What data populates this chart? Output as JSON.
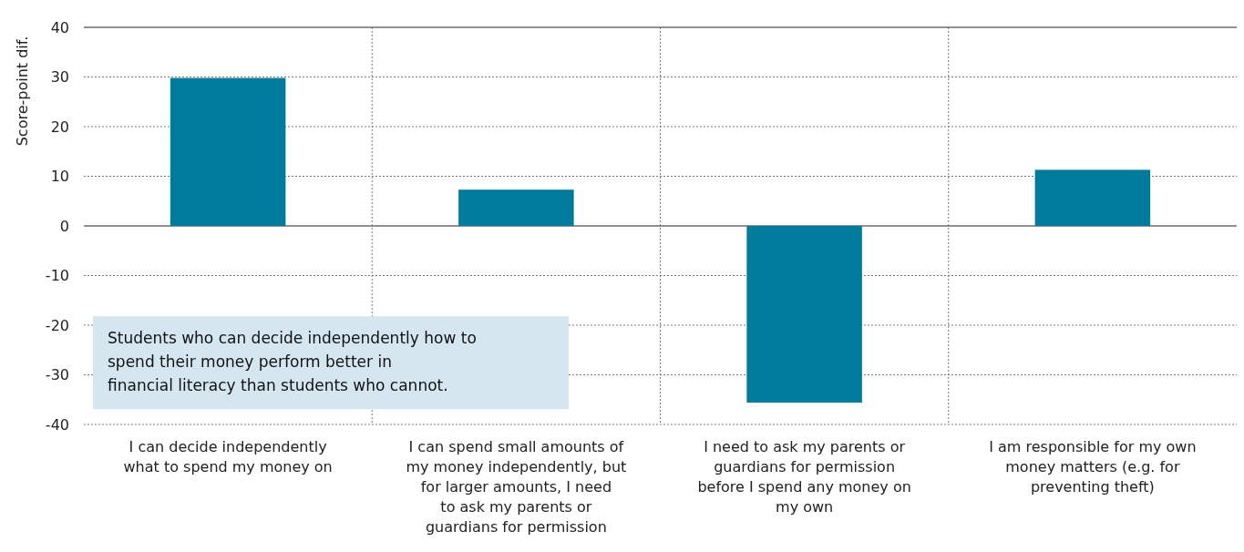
{
  "chart_data": {
    "type": "bar",
    "ylabel": "Score-point dif.",
    "categories": [
      "I can decide independently what to spend my money on",
      "I can spend small amounts of my money independently, but for larger amounts, I need to ask my parents or guardians for permission",
      "I need to ask my parents or guardians for permission before I spend any money on my own",
      "I am responsible for my own money matters (e.g. for preventing theft)"
    ],
    "values": [
      29.8,
      7.3,
      -35.6,
      11.3
    ],
    "color": "#007b9c",
    "ylim": [
      -40,
      40
    ],
    "yticks": [
      -40,
      -30,
      -20,
      -10,
      0,
      10,
      20,
      30,
      40
    ],
    "grid": true,
    "annotations": [
      "Students who can decide independently how to spend their money perform better in financial literacy than students who cannot."
    ]
  }
}
